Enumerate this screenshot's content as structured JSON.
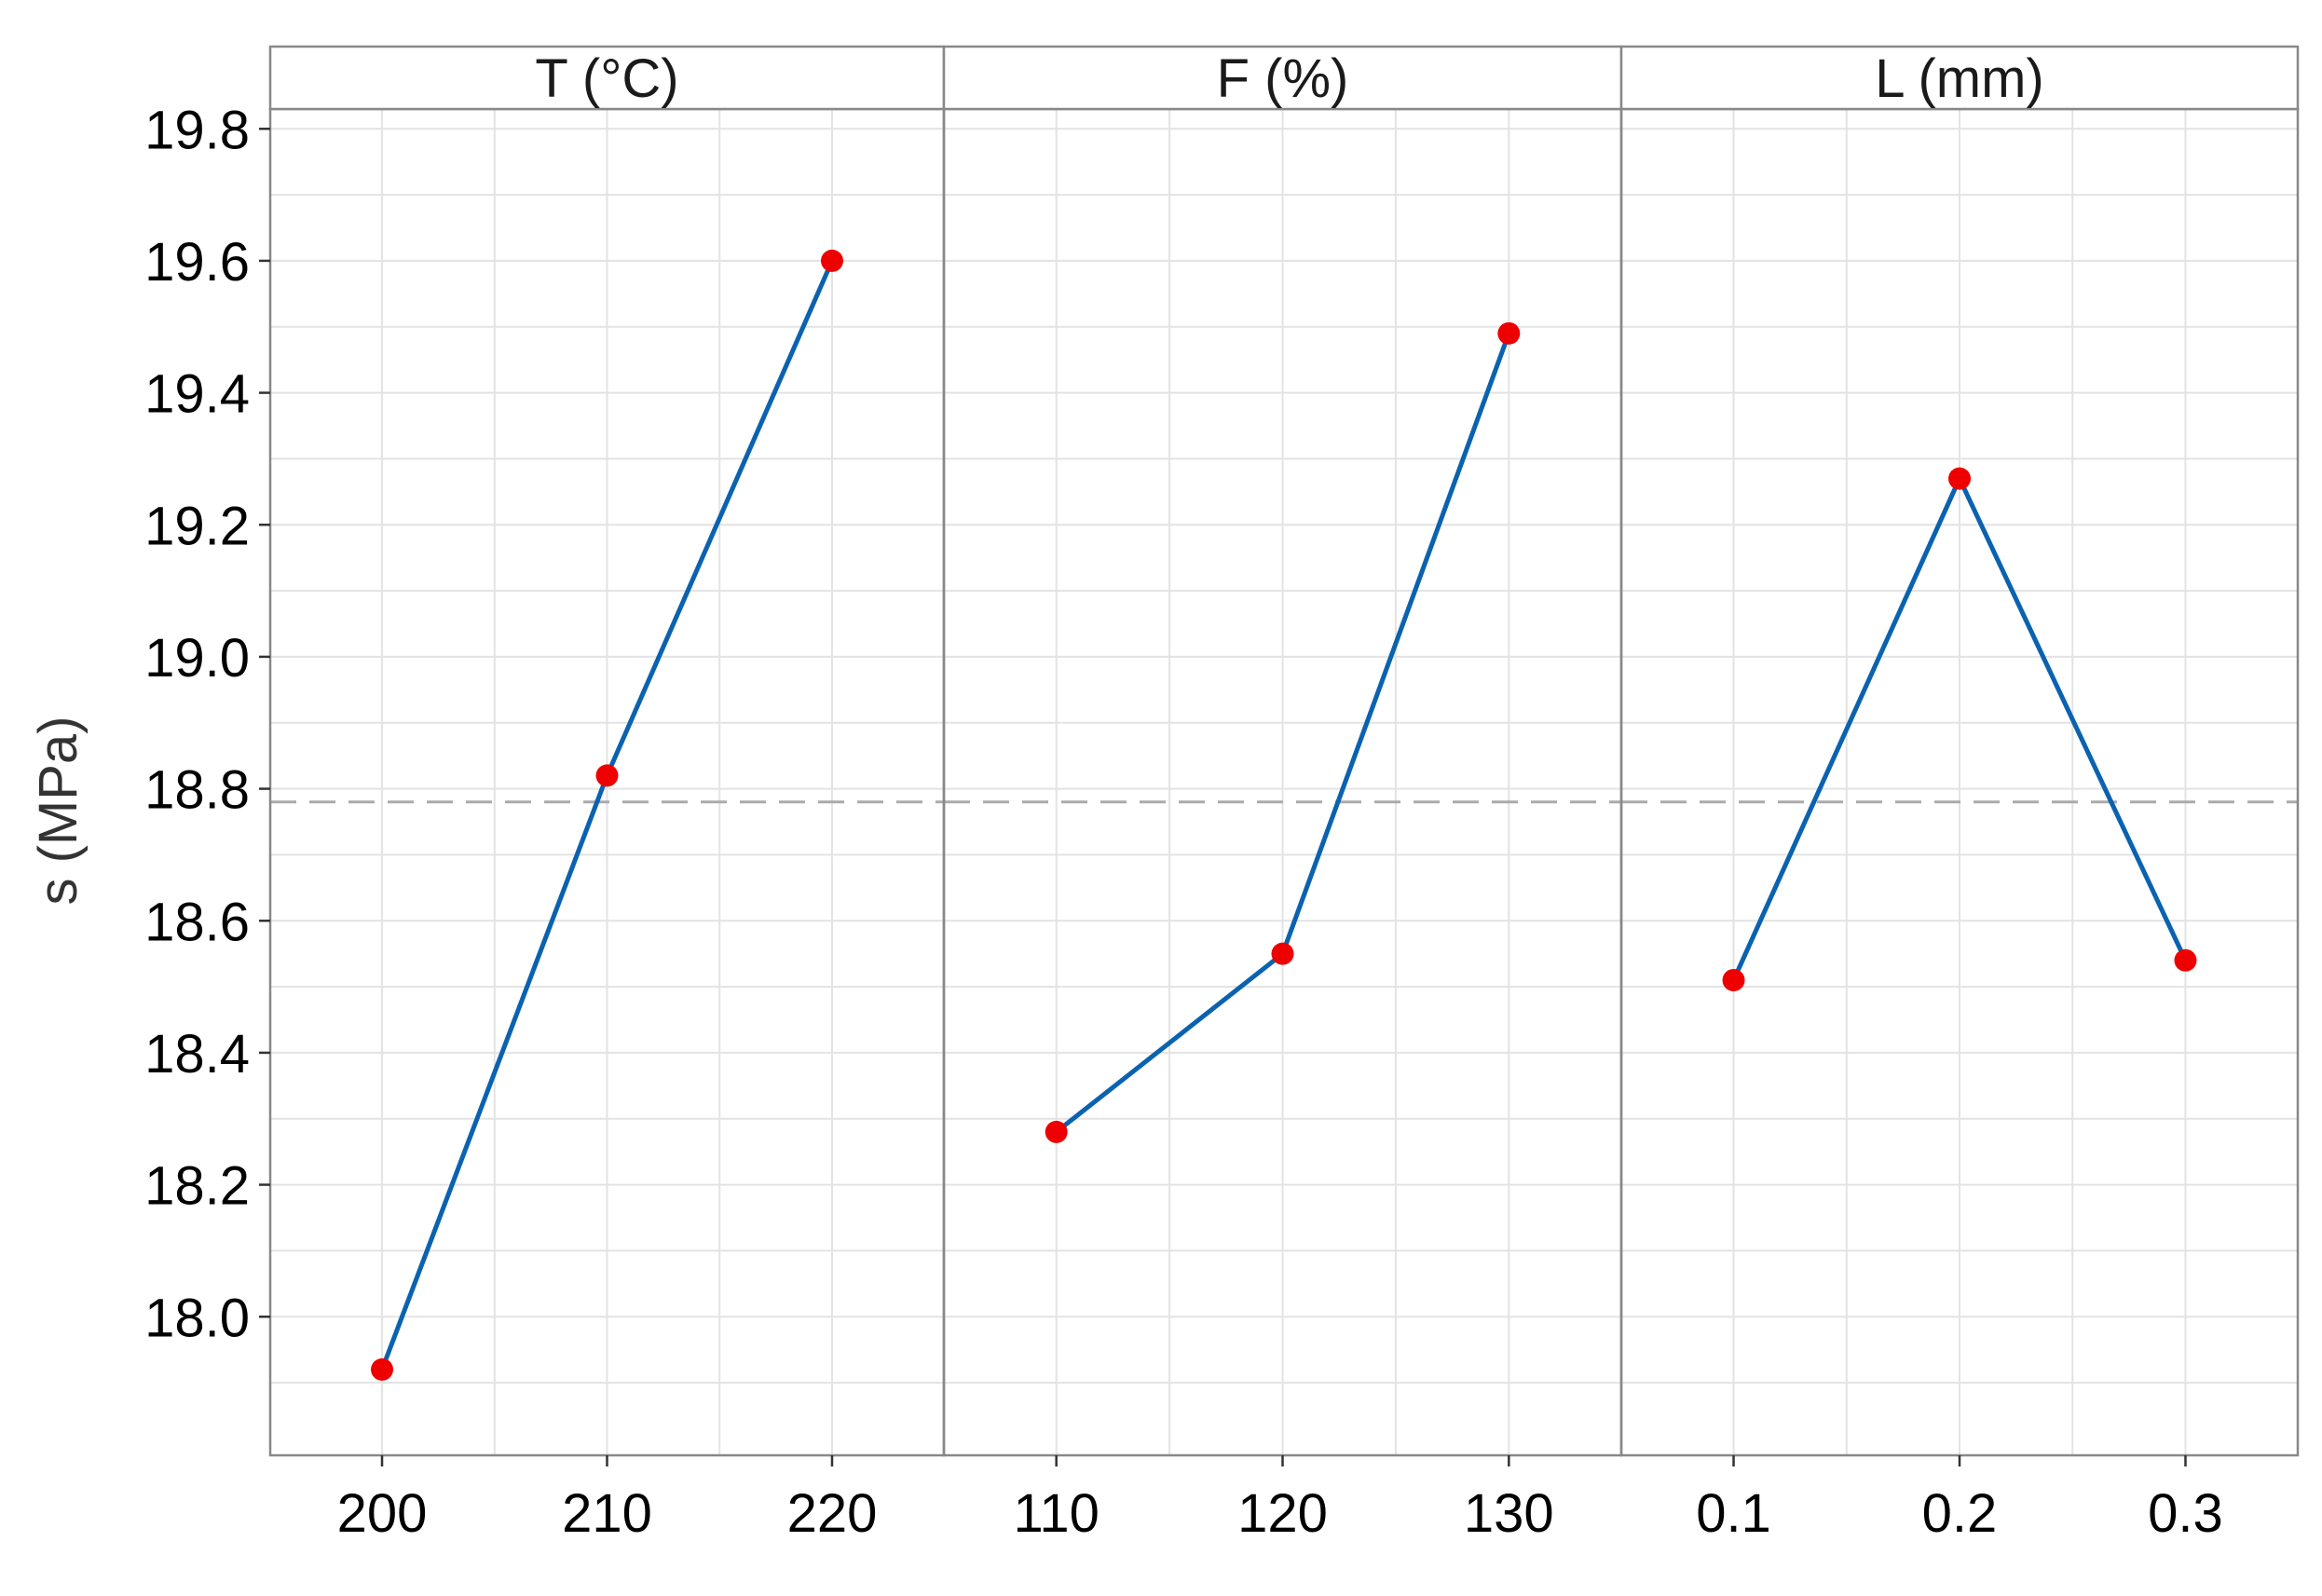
{
  "chart_data": {
    "type": "line",
    "ylabel": "s (MPa)",
    "ylim": [
      17.79,
      19.83
    ],
    "yticks": [
      "18.0",
      "18.2",
      "18.4",
      "18.6",
      "18.8",
      "19.0",
      "19.2",
      "19.4",
      "19.6",
      "19.8"
    ],
    "reference_line": {
      "y": 18.78,
      "style": "dashed"
    },
    "grid": true,
    "colors": {
      "line": "#0a62b0",
      "point": "#ee0000",
      "reference": "#aaaaaa",
      "grid": "#e3e3e3",
      "border": "#888888"
    },
    "panels": [
      {
        "label": "T (°C)",
        "categories": [
          "200",
          "210",
          "220"
        ],
        "values": [
          17.92,
          18.82,
          19.6
        ]
      },
      {
        "label": "F (%)",
        "categories": [
          "110",
          "120",
          "130"
        ],
        "values": [
          18.28,
          18.55,
          19.49
        ]
      },
      {
        "label": "L (mm)",
        "categories": [
          "0.1",
          "0.2",
          "0.3"
        ],
        "values": [
          18.51,
          19.27,
          18.54
        ]
      }
    ]
  }
}
